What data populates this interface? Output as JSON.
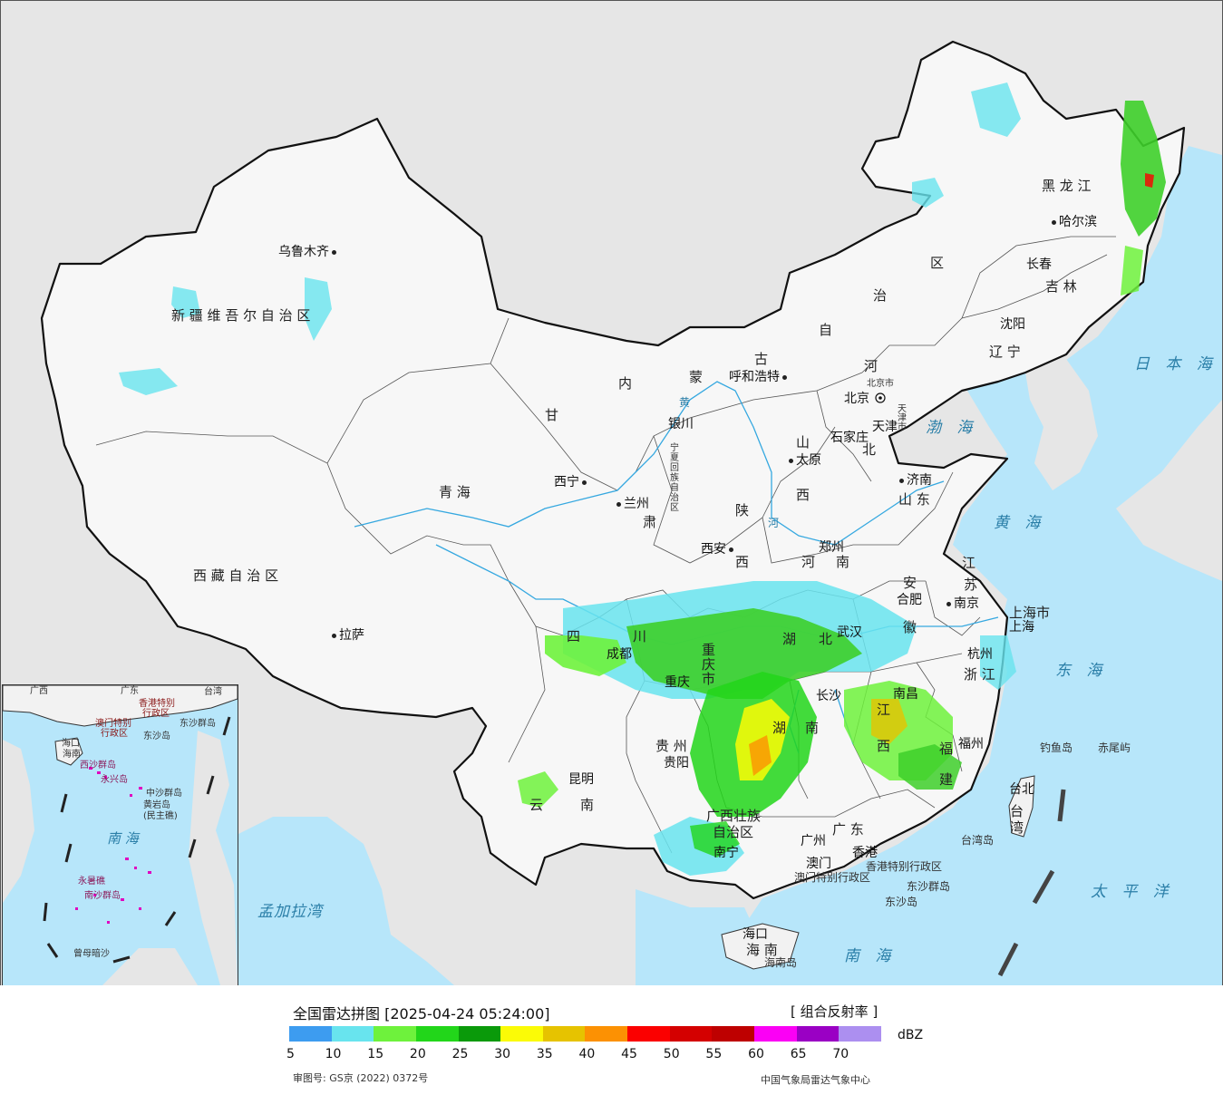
{
  "map": {
    "provinces": {
      "xinjiang": "新 疆 维 吾 尔 自 治 区",
      "xizang": "西 藏 自 治 区",
      "qinghai": "青 海",
      "gansu": "甘",
      "gansu_su": "肃",
      "neimenggu_nei": "内",
      "neimenggu_meng": "蒙",
      "neimenggu_gu": "古",
      "neimenggu_zi": "自",
      "neimenggu_zhi": "治",
      "neimenggu_qu": "区",
      "heilongjiang": "黑 龙 江",
      "jilin": "吉 林",
      "liaoning": "辽 宁",
      "hebei_he": "河",
      "hebei_bei": "北",
      "shanxi_shan": "山",
      "shanxi_xi": "西",
      "shandong": "山 东",
      "ningxia": "宁夏回族自治区",
      "shaanxi_shan": "陕",
      "shaanxi_xi": "西",
      "henan_he": "河",
      "henan_nan": "南",
      "jiangsu_jiang": "江",
      "jiangsu_su": "苏",
      "anhui_an": "安",
      "anhui_hui": "徽",
      "sichuan_si": "四",
      "sichuan_chuan": "川",
      "chongqing": "重 庆 市",
      "hubei_hu": "湖",
      "hubei_bei": "北",
      "hunan_hu": "湖",
      "hunan_nan": "南",
      "jiangxi_jiang": "江",
      "jiangxi_xi": "西",
      "zhejiang": "浙 江",
      "fujian_fu": "福",
      "fujian_jian": "建",
      "guizhou": "贵 州",
      "yunnan_yun": "云",
      "yunnan_nan": "南",
      "guangxi": "广西壮族",
      "guangxi2": "自治区",
      "guangdong": "广 东",
      "hainan": "海 南",
      "taiwan": "台湾",
      "shanghai": "上海市",
      "beijing_city": "北京市",
      "tianjin_city": "天津市",
      "hongkong_sar": "香港特别行政区",
      "macau_sar": "澳门特别行政区"
    },
    "cities": {
      "wulumuqi": "乌鲁木齐",
      "lasa": "拉萨",
      "xining": "西宁",
      "lanzhou": "兰州",
      "yinchuan": "银川",
      "huhehaote": "呼和浩特",
      "beijing": "北京",
      "tianjin": "天津",
      "shijiazhuang": "石家庄",
      "taiyuan": "太原",
      "jinan": "济南",
      "zhengzhou": "郑州",
      "xian": "西安",
      "haerbin": "哈尔滨",
      "changchun": "长春",
      "shenyang": "沈阳",
      "hefei": "合肥",
      "nanjing": "南京",
      "shanghai": "上海",
      "hangzhou": "杭州",
      "wuhan": "武汉",
      "chengdu": "成都",
      "chongqing": "重庆",
      "guiyang": "贵阳",
      "changsha": "长沙",
      "nanchang": "南昌",
      "fuzhou": "福州",
      "taibei": "台北",
      "kunming": "昆明",
      "nanning": "南宁",
      "guangzhou": "广州",
      "xianggang": "香港",
      "aomen": "澳门",
      "haikou": "海口"
    },
    "seas": {
      "bohai": "渤 海",
      "huanghai": "黄 海",
      "donghai": "东 海",
      "nanhai": "南 海",
      "taipingyang": "太 平 洋",
      "ribenhai": "日 本 海",
      "mengjialawan": "孟加拉湾"
    },
    "islands": {
      "diaoyudao": "钓鱼岛",
      "chiweiyu": "赤尾屿",
      "taiwandao": "台湾岛",
      "dongshaqundao": "东沙群岛",
      "dongshadao": "东沙岛",
      "hainandao": "海南岛"
    },
    "rivers": {
      "huang": "黄",
      "he": "河"
    }
  },
  "inset": {
    "labels": {
      "guangdong": "广东",
      "taiwan": "台湾",
      "guangxi": "广西",
      "xianggang_sar": "香港特别",
      "xingzhengqu": "行政区",
      "aomen_sar": "澳门特别",
      "xingzhengqu2": "行政区",
      "dongsha": "东沙群岛",
      "dongshadao": "东沙岛",
      "haikou": "海口",
      "hainan": "海南",
      "xisha": "西沙群岛",
      "yongxingdao": "永兴岛",
      "zhongsha": "中沙群岛",
      "huangyandao": "黄岩岛",
      "minzhujiao": "(民主礁)",
      "nanhai": "南 海",
      "yongshujiao": "永暑礁",
      "nansha": "南沙群岛",
      "zengmuansha": "曾母暗沙"
    }
  },
  "legend": {
    "title": "全国雷达拼图 [2025-04-24 05:24:00]",
    "product": "[ 组合反射率 ]",
    "unit": "dBZ",
    "ticks": [
      "5",
      "10",
      "15",
      "20",
      "25",
      "30",
      "35",
      "40",
      "45",
      "50",
      "55",
      "60",
      "65",
      "70"
    ],
    "colors": [
      "#3d9cf0",
      "#68e4ee",
      "#6ef23c",
      "#22d61a",
      "#0a9a0a",
      "#fbfb06",
      "#e6c300",
      "#fc9103",
      "#fb0000",
      "#d40000",
      "#be0000",
      "#fb00f5",
      "#9a00c4",
      "#ac8ff0"
    ],
    "approval": "审图号: GS京 (2022) 0372号",
    "source": "中国气象局雷达气象中心"
  }
}
